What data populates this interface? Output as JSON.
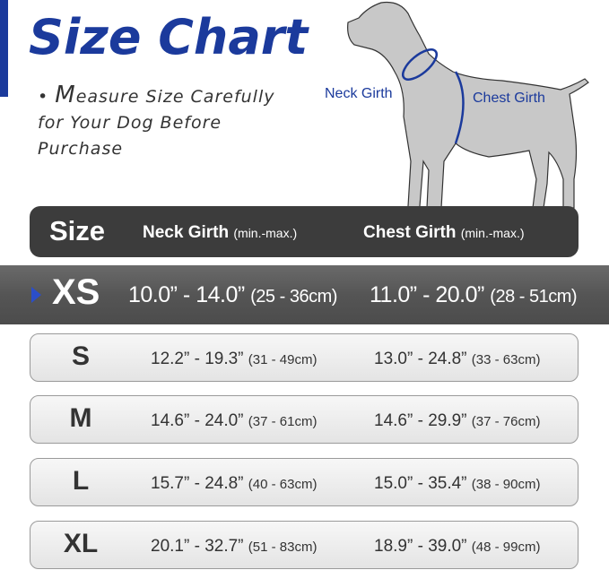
{
  "title": "Size Chart",
  "note": {
    "first_letter": "M",
    "text_line1": "easure Size Carefully",
    "text_line2": "for Your Dog Before",
    "text_line3": "Purchase"
  },
  "diagram": {
    "neck_label": "Neck Girth",
    "chest_label": "Chest Girth"
  },
  "header": {
    "size": "Size",
    "neck": "Neck Girth",
    "neck_unit": "(min.-max.)",
    "chest": "Chest Girth",
    "chest_unit": "(min.-max.)"
  },
  "colors": {
    "accent": "#1b3a9c",
    "header_bg": "#3c3c3c",
    "highlight_bg": "#555555",
    "dog": "#c8c8c8"
  },
  "rows": [
    {
      "size": "XS",
      "neck_in": "10.0” - 14.0”",
      "neck_cm": "(25 - 36cm)",
      "chest_in": "11.0” - 20.0”",
      "chest_cm": "(28 - 51cm)",
      "highlighted": true
    },
    {
      "size": "S",
      "neck_in": "12.2” - 19.3”",
      "neck_cm": "(31 - 49cm)",
      "chest_in": "13.0” - 24.8”",
      "chest_cm": "(33 - 63cm)"
    },
    {
      "size": "M",
      "neck_in": "14.6” - 24.0”",
      "neck_cm": "(37 - 61cm)",
      "chest_in": "14.6” - 29.9”",
      "chest_cm": "(37 - 76cm)"
    },
    {
      "size": "L",
      "neck_in": "15.7” - 24.8”",
      "neck_cm": "(40 - 63cm)",
      "chest_in": "15.0” - 35.4”",
      "chest_cm": "(38 - 90cm)"
    },
    {
      "size": "XL",
      "neck_in": "20.1” - 32.7”",
      "neck_cm": "(51 - 83cm)",
      "chest_in": "18.9” - 39.0”",
      "chest_cm": "(48 - 99cm)"
    }
  ]
}
